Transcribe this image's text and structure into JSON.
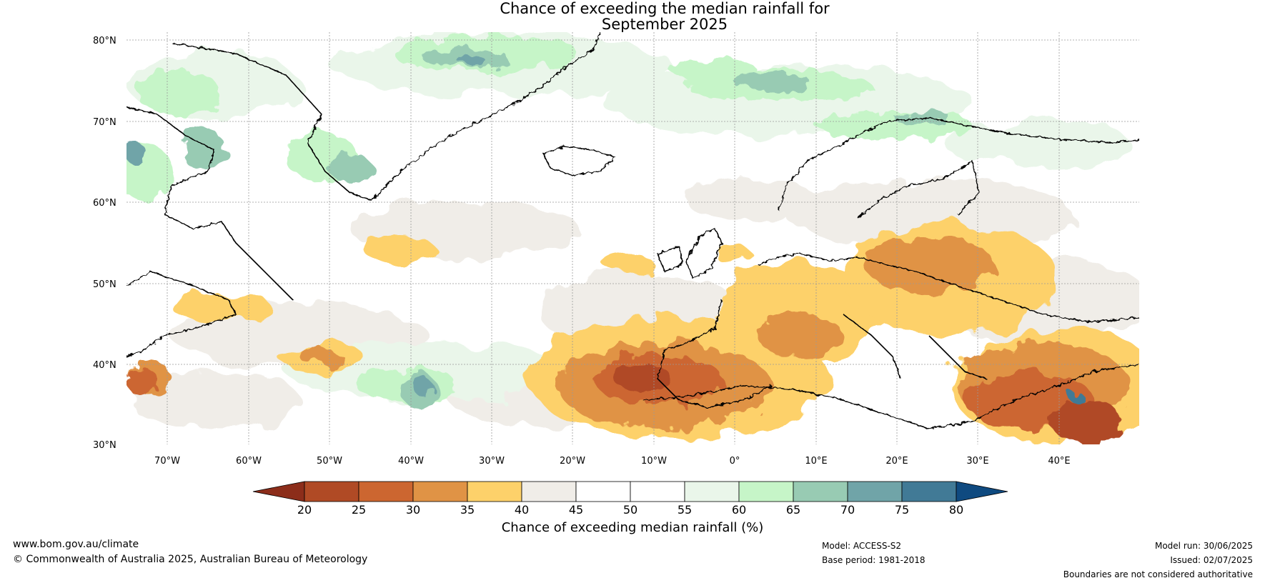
{
  "title_line1": "Chance of exceeding the median rainfall for",
  "title_line2": "September 2025",
  "lat_labels": [
    "80°N",
    "70°N",
    "60°N",
    "50°N",
    "40°N",
    "30°N"
  ],
  "lon_labels": [
    "70°W",
    "60°W",
    "50°W",
    "40°W",
    "30°W",
    "20°W",
    "10°W",
    "0°",
    "10°E",
    "20°E",
    "30°E",
    "40°E"
  ],
  "colorbar": {
    "title": "Chance of exceeding median rainfall (%)",
    "ticks": [
      "20",
      "25",
      "30",
      "35",
      "40",
      "45",
      "50",
      "55",
      "60",
      "65",
      "70",
      "75",
      "80"
    ],
    "colors": [
      "#8c2d1a",
      "#b04a25",
      "#cc6630",
      "#e09345",
      "#fdd16a",
      "#f0ede8",
      "#ffffff",
      "#ffffff",
      "#eaf6ea",
      "#c6f5c8",
      "#98cbb3",
      "#70a4a8",
      "#417a96",
      "#0f4a80"
    ]
  },
  "footer": {
    "website": "www.bom.gov.au/climate",
    "copyright": "© Commonwealth of Australia 2025, Australian Bureau of Meteorology",
    "model": "Model: ACCESS-S2",
    "base_period": "Base period: 1981-2018",
    "model_run": "Model run: 30/06/2025",
    "issued": "Issued: 02/07/2025",
    "disclaimer": "Boundaries are not considered authoritative"
  }
}
